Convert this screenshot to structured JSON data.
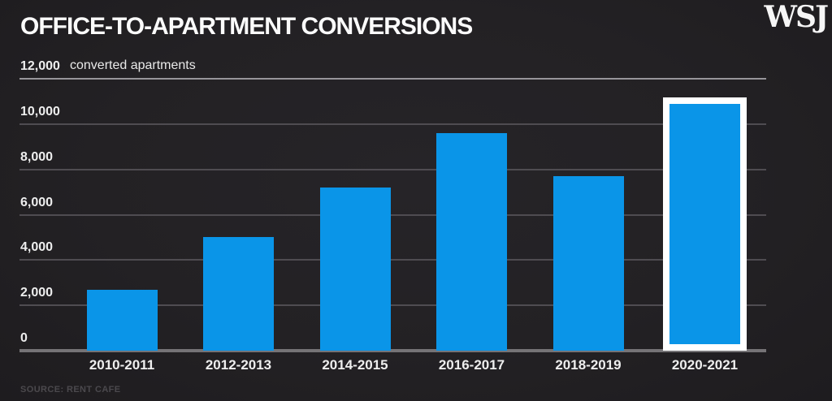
{
  "brand": "WSJ",
  "chart_data": {
    "type": "bar",
    "title": "OFFICE-TO-APARTMENT CONVERSIONS",
    "unit_label": "converted apartments",
    "source": "SOURCE: RENT CAFE",
    "categories": [
      "2010-2011",
      "2012-2013",
      "2014-2015",
      "2016-2017",
      "2018-2019",
      "2020-2021"
    ],
    "values": [
      2700,
      5000,
      7200,
      9600,
      7700,
      10900
    ],
    "highlight_index": 5,
    "highlighted_category": "2020-2021",
    "y_ticks": [
      {
        "label": "12,000",
        "value": 12000
      },
      {
        "label": "10,000",
        "value": 10000
      },
      {
        "label": "8,000",
        "value": 8000
      },
      {
        "label": "6,000",
        "value": 6000
      },
      {
        "label": "4,000",
        "value": 4000
      },
      {
        "label": "2,000",
        "value": 2000
      },
      {
        "label": "0",
        "value": 0
      }
    ],
    "ylim": [
      0,
      12000
    ],
    "grid": true,
    "legend": "none",
    "colors": {
      "background": "#232124",
      "bar": "#0a95e8",
      "highlight_border": "#ffffff",
      "gridline": "#4f4c51",
      "top_rule": "#97959a",
      "axis_line": "#757376",
      "text": "#eeeeee",
      "source_text": "#4b494d"
    }
  }
}
